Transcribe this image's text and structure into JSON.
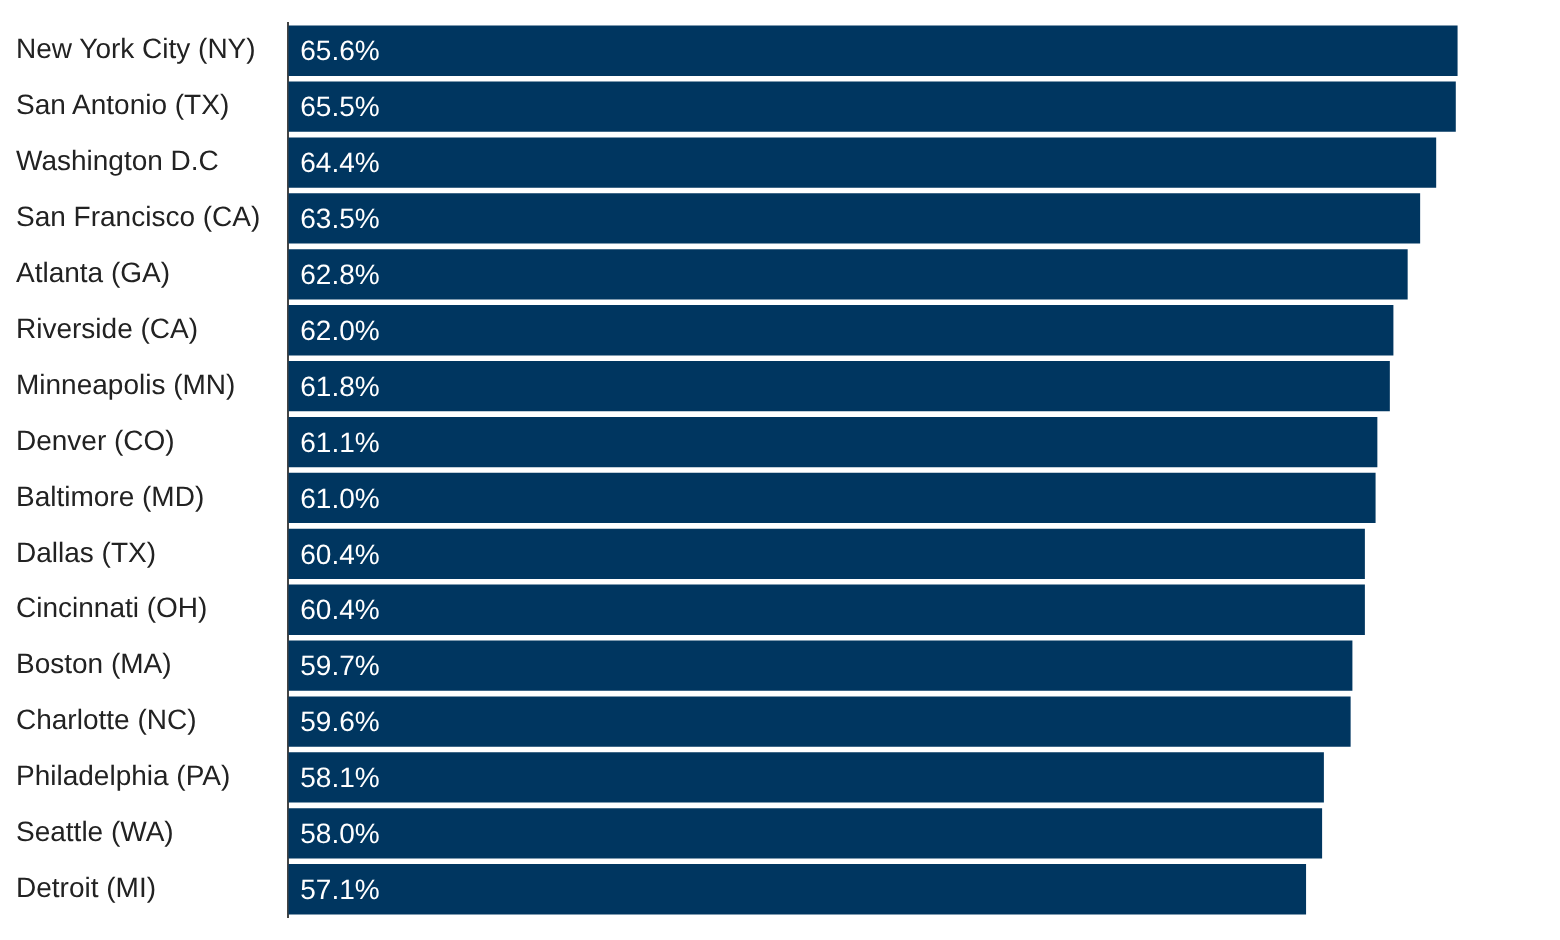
{
  "chart_data": {
    "type": "bar",
    "orientation": "horizontal",
    "categories": [
      "New York City (NY)",
      "San Antonio (TX)",
      "Washington D.C",
      "San Francisco (CA)",
      "Atlanta (GA)",
      "Riverside (CA)",
      "Minneapolis (MN)",
      "Denver (CO)",
      "Baltimore (MD)",
      "Dallas (TX)",
      "Cincinnati (OH)",
      "Boston (MA)",
      "Charlotte (NC)",
      "Philadelphia (PA)",
      "Seattle (WA)",
      "Detroit (MI)"
    ],
    "values": [
      65.6,
      65.5,
      64.4,
      63.5,
      62.8,
      62.0,
      61.8,
      61.1,
      61.0,
      60.4,
      60.4,
      59.7,
      59.6,
      58.1,
      58.0,
      57.1
    ],
    "value_labels": [
      "65.6%",
      "65.5%",
      "64.4%",
      "63.5%",
      "62.8%",
      "62.0%",
      "61.8%",
      "61.1%",
      "61.0%",
      "60.4%",
      "60.4%",
      "59.7%",
      "59.6%",
      "58.1%",
      "58.0%",
      "57.1%"
    ],
    "color": "#003660",
    "tick_labels": "y",
    "legend": false
  }
}
